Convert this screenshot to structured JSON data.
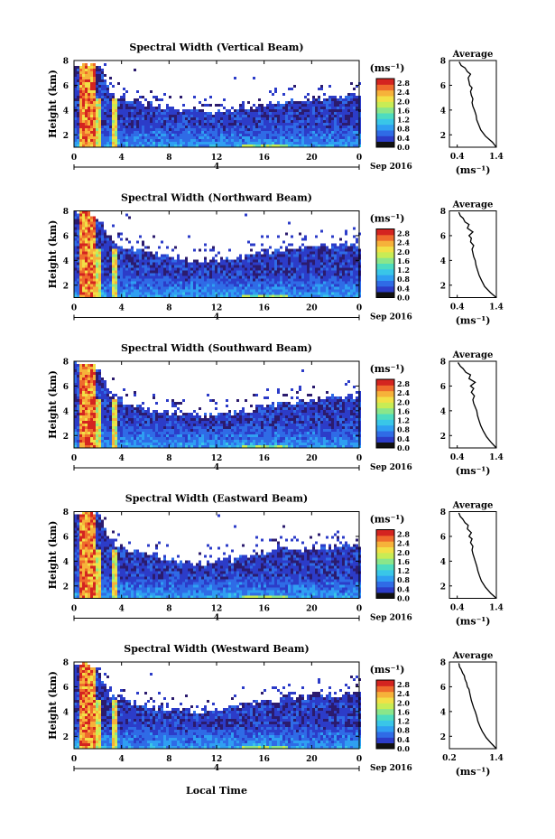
{
  "figure": {
    "shared_xlabel": "Local Time",
    "date_label": "Sep 2016",
    "day_label": "4",
    "cbar_unit": "(ms⁻¹)",
    "avg_title": "Average",
    "avg_xunit": "(ms⁻¹)"
  },
  "colors": {
    "scale": [
      "#2b1b6e",
      "#2c3cc8",
      "#2f6be6",
      "#2f9ff2",
      "#39c6e8",
      "#4ddcc0",
      "#8ae68a",
      "#c8ec55",
      "#f2e046",
      "#f6b23a",
      "#ef6b2c",
      "#d42420"
    ],
    "profile_line": "#000000",
    "background": "#ffffff"
  },
  "chart_data": [
    {
      "type": "heatmap",
      "title": "Spectral Width (Vertical Beam)",
      "xlabel": "",
      "ylabel": "Height (km)",
      "xticks": [
        "0",
        "4",
        "8",
        "12",
        "16",
        "20",
        "0"
      ],
      "yticks": [
        "2",
        "4",
        "6",
        "8"
      ],
      "xlim": [
        0,
        24
      ],
      "ylim": [
        1,
        8
      ],
      "colorbar": {
        "ticks": [
          "0.0",
          "0.4",
          "0.8",
          "1.2",
          "1.6",
          "2.0",
          "2.4",
          "2.8"
        ],
        "range": [
          0,
          3.0
        ]
      },
      "top_height_km": [
        7.6,
        8.0,
        7.8,
        5.3,
        5.1,
        4.9,
        4.6,
        4.5,
        4.3,
        4.2,
        4.1,
        4.0,
        4.0,
        4.1,
        4.3,
        4.4,
        4.5,
        4.6,
        4.8,
        4.9,
        5.0,
        5.1,
        5.2,
        5.3,
        5.4
      ]
    },
    {
      "type": "heatmap",
      "title": "Spectral Width (Northward Beam)",
      "xlabel": "",
      "ylabel": "Height (km)",
      "xticks": [
        "0",
        "4",
        "8",
        "12",
        "16",
        "20",
        "0"
      ],
      "yticks": [
        "2",
        "4",
        "6",
        "8"
      ],
      "xlim": [
        0,
        24
      ],
      "ylim": [
        1,
        8
      ],
      "colorbar": {
        "ticks": [
          "0.0",
          "0.4",
          "0.8",
          "1.2",
          "1.6",
          "2.0",
          "2.4",
          "2.8"
        ],
        "range": [
          0,
          3.0
        ]
      },
      "top_height_km": [
        7.8,
        8.0,
        7.6,
        5.8,
        5.3,
        5.0,
        4.8,
        4.5,
        4.3,
        4.2,
        4.1,
        4.1,
        4.2,
        4.3,
        4.4,
        4.6,
        4.8,
        4.9,
        5.0,
        5.1,
        5.2,
        5.3,
        5.3,
        5.4,
        5.4
      ]
    },
    {
      "type": "heatmap",
      "title": "Spectral Width (Southward Beam)",
      "xlabel": "",
      "ylabel": "Height (km)",
      "xticks": [
        "0",
        "4",
        "8",
        "12",
        "16",
        "20",
        "0"
      ],
      "yticks": [
        "2",
        "4",
        "6",
        "8"
      ],
      "xlim": [
        0,
        24
      ],
      "ylim": [
        1,
        8
      ],
      "colorbar": {
        "ticks": [
          "0.0",
          "0.4",
          "0.8",
          "1.2",
          "1.6",
          "2.0",
          "2.4",
          "2.8"
        ],
        "range": [
          0,
          3.0
        ]
      },
      "top_height_km": [
        7.9,
        8.0,
        7.5,
        5.4,
        4.9,
        4.6,
        4.3,
        4.1,
        3.9,
        3.8,
        3.7,
        3.7,
        3.8,
        3.9,
        4.1,
        4.3,
        4.5,
        4.7,
        4.8,
        4.9,
        5.0,
        5.1,
        5.2,
        5.3,
        5.4
      ]
    },
    {
      "type": "heatmap",
      "title": "Spectral Width (Eastward Beam)",
      "xlabel": "",
      "ylabel": "Height (km)",
      "xticks": [
        "0",
        "4",
        "8",
        "12",
        "16",
        "20",
        "0"
      ],
      "yticks": [
        "2",
        "4",
        "6",
        "8"
      ],
      "xlim": [
        0,
        24
      ],
      "ylim": [
        1,
        8
      ],
      "colorbar": {
        "ticks": [
          "0.0",
          "0.4",
          "0.8",
          "1.2",
          "1.6",
          "2.0",
          "2.4",
          "2.8"
        ],
        "range": [
          0,
          3.0
        ]
      },
      "top_height_km": [
        7.6,
        8.0,
        7.8,
        5.6,
        5.2,
        4.9,
        4.7,
        4.5,
        4.3,
        4.1,
        4.0,
        4.0,
        4.1,
        4.2,
        4.4,
        4.6,
        4.8,
        4.9,
        5.0,
        5.1,
        5.2,
        5.3,
        5.3,
        5.4,
        5.4
      ]
    },
    {
      "type": "heatmap",
      "title": "Spectral Width (Westward Beam)",
      "xlabel": "",
      "ylabel": "Height (km)",
      "xticks": [
        "0",
        "4",
        "8",
        "12",
        "16",
        "20",
        "0"
      ],
      "yticks": [
        "2",
        "4",
        "6",
        "8"
      ],
      "xlim": [
        0,
        24
      ],
      "ylim": [
        1,
        8
      ],
      "colorbar": {
        "ticks": [
          "0.0",
          "0.4",
          "0.8",
          "1.2",
          "1.6",
          "2.0",
          "2.4",
          "2.8"
        ],
        "range": [
          0,
          3.0
        ]
      },
      "top_height_km": [
        7.7,
        8.0,
        7.4,
        5.4,
        5.0,
        4.8,
        4.6,
        4.4,
        4.3,
        4.2,
        4.1,
        4.1,
        4.2,
        4.4,
        4.6,
        4.8,
        5.0,
        5.1,
        5.2,
        5.3,
        5.4,
        5.4,
        5.5,
        5.5,
        5.5
      ]
    },
    {
      "type": "line",
      "title": "Average",
      "xlabel": "(ms⁻¹)",
      "ylabel": "",
      "xticks": [
        "0.4",
        "1.4"
      ],
      "yticks": [
        "2",
        "4",
        "6",
        "8"
      ],
      "xlim": [
        0.2,
        1.4
      ],
      "ylim": [
        1,
        8
      ],
      "x": [
        1.4,
        1.3,
        1.12,
        1.0,
        0.95,
        0.9,
        0.88,
        0.84,
        0.8,
        0.78,
        0.8,
        0.76,
        0.74,
        0.78,
        0.72,
        0.7,
        0.68,
        0.74,
        0.66,
        0.6,
        0.5,
        0.45
      ],
      "y": [
        1.0,
        1.4,
        1.9,
        2.4,
        2.8,
        3.2,
        3.6,
        4.0,
        4.3,
        4.6,
        4.9,
        5.2,
        5.5,
        5.8,
        6.0,
        6.3,
        6.6,
        6.9,
        7.1,
        7.4,
        7.6,
        7.9
      ]
    },
    {
      "type": "line",
      "title": "Average",
      "xlabel": "(ms⁻¹)",
      "ylabel": "",
      "xticks": [
        "0.4",
        "1.4"
      ],
      "yticks": [
        "2",
        "4",
        "6",
        "8"
      ],
      "xlim": [
        0.2,
        1.4
      ],
      "ylim": [
        1,
        8
      ],
      "x": [
        1.4,
        1.25,
        1.1,
        1.02,
        0.96,
        0.92,
        0.88,
        0.86,
        0.82,
        0.8,
        0.78,
        0.82,
        0.74,
        0.76,
        0.7,
        0.8,
        0.66,
        0.7,
        0.6,
        0.55,
        0.48,
        0.44
      ],
      "y": [
        1.0,
        1.4,
        1.9,
        2.4,
        2.8,
        3.2,
        3.6,
        4.0,
        4.3,
        4.6,
        4.9,
        5.2,
        5.5,
        5.8,
        6.0,
        6.3,
        6.6,
        6.9,
        7.1,
        7.4,
        7.6,
        7.9
      ]
    },
    {
      "type": "line",
      "title": "Average",
      "xlabel": "(ms⁻¹)",
      "ylabel": "",
      "xticks": [
        "0.4",
        "1.4"
      ],
      "yticks": [
        "2",
        "4",
        "6",
        "8"
      ],
      "xlim": [
        0.2,
        1.4
      ],
      "ylim": [
        1,
        8
      ],
      "x": [
        1.4,
        1.28,
        1.15,
        1.06,
        1.0,
        0.96,
        0.92,
        0.9,
        0.86,
        0.82,
        0.8,
        0.84,
        0.76,
        0.82,
        0.74,
        0.86,
        0.7,
        0.74,
        0.62,
        0.55,
        0.48,
        0.42
      ],
      "y": [
        1.0,
        1.4,
        1.9,
        2.4,
        2.8,
        3.2,
        3.6,
        4.0,
        4.3,
        4.6,
        4.9,
        5.2,
        5.5,
        5.8,
        6.0,
        6.3,
        6.6,
        6.9,
        7.1,
        7.4,
        7.6,
        7.9
      ]
    },
    {
      "type": "line",
      "title": "Average",
      "xlabel": "(ms⁻¹)",
      "ylabel": "",
      "xticks": [
        "0.4",
        "1.4"
      ],
      "yticks": [
        "2",
        "4",
        "6",
        "8"
      ],
      "xlim": [
        0.2,
        1.4
      ],
      "ylim": [
        1,
        8
      ],
      "x": [
        1.4,
        1.26,
        1.12,
        1.02,
        0.97,
        0.93,
        0.9,
        0.86,
        0.83,
        0.8,
        0.78,
        0.8,
        0.74,
        0.78,
        0.7,
        0.76,
        0.66,
        0.68,
        0.6,
        0.54,
        0.48,
        0.44
      ],
      "y": [
        1.0,
        1.4,
        1.9,
        2.4,
        2.8,
        3.2,
        3.6,
        4.0,
        4.3,
        4.6,
        4.9,
        5.2,
        5.5,
        5.8,
        6.0,
        6.3,
        6.6,
        6.9,
        7.1,
        7.4,
        7.6,
        7.9
      ]
    },
    {
      "type": "line",
      "title": "Average",
      "xlabel": "(ms⁻¹)",
      "ylabel": "",
      "xticks": [
        "0.2",
        "1.4"
      ],
      "yticks": [
        "2",
        "4",
        "6",
        "8"
      ],
      "xlim": [
        0.2,
        1.4
      ],
      "ylim": [
        1,
        8
      ],
      "x": [
        1.4,
        1.28,
        1.14,
        1.04,
        0.98,
        0.93,
        0.9,
        0.86,
        0.82,
        0.79,
        0.76,
        0.74,
        0.72,
        0.7,
        0.66,
        0.64,
        0.6,
        0.58,
        0.54,
        0.5,
        0.46,
        0.44
      ],
      "y": [
        1.0,
        1.4,
        1.9,
        2.4,
        2.8,
        3.2,
        3.6,
        4.0,
        4.3,
        4.6,
        4.9,
        5.2,
        5.5,
        5.8,
        6.0,
        6.3,
        6.6,
        6.9,
        7.1,
        7.4,
        7.6,
        7.9
      ]
    }
  ]
}
